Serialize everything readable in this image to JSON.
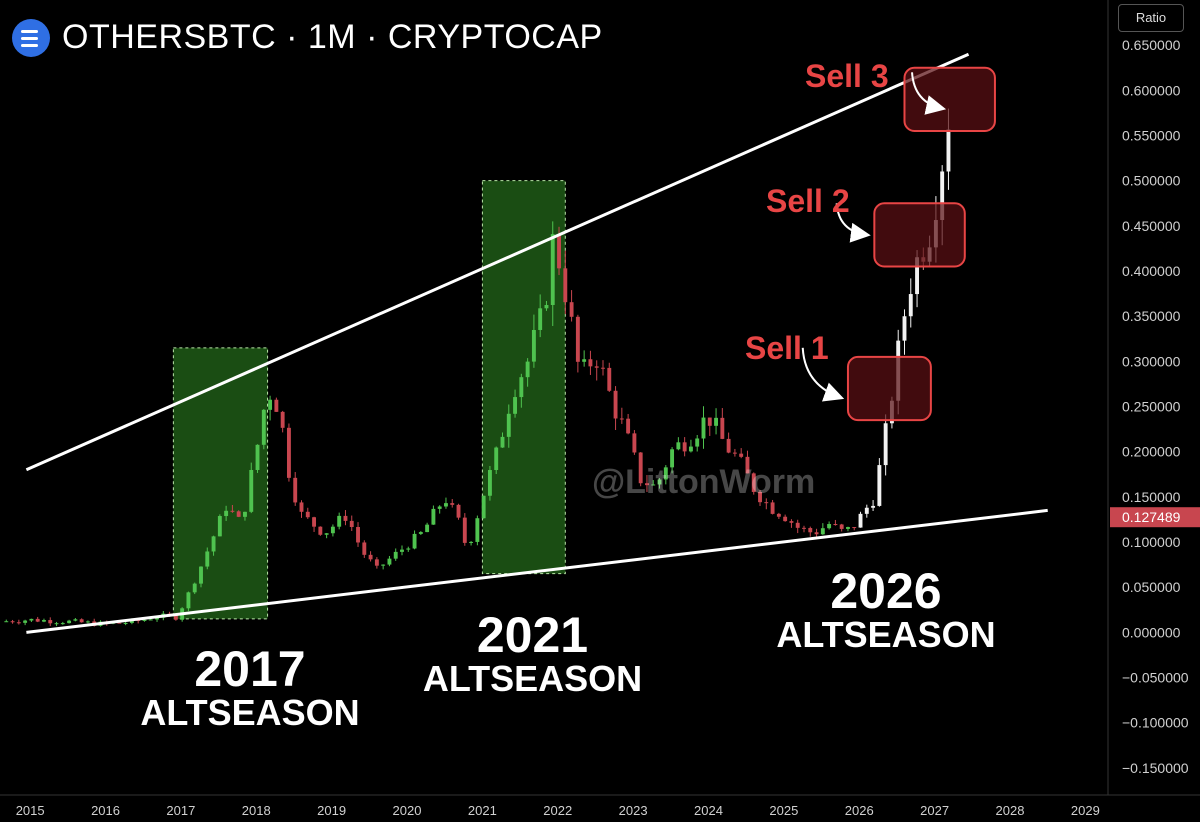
{
  "header": {
    "title": "OTHERSBTC · 1M · CRYPTOCAP",
    "scale_button": "Ratio"
  },
  "watermark": "@LittonWorm",
  "chart_data": {
    "type": "candlestick",
    "x_unit": "year",
    "xlim": [
      2014.6,
      2029.3
    ],
    "ylim": [
      -0.18,
      0.7
    ],
    "grid": false,
    "x_ticks": [
      "2015",
      "2016",
      "2017",
      "2018",
      "2019",
      "2020",
      "2021",
      "2022",
      "2023",
      "2024",
      "2025",
      "2026",
      "2027",
      "2028",
      "2029"
    ],
    "y_ticks": [
      "0.650000",
      "0.600000",
      "0.550000",
      "0.500000",
      "0.450000",
      "0.400000",
      "0.350000",
      "0.300000",
      "0.250000",
      "0.200000",
      "0.150000",
      "0.100000",
      "0.050000",
      "0.000000",
      "−0.050000",
      "−0.100000",
      "−0.150000"
    ],
    "y_tick_values": [
      0.65,
      0.6,
      0.55,
      0.5,
      0.45,
      0.4,
      0.35,
      0.3,
      0.25,
      0.2,
      0.15,
      0.1,
      0.05,
      0.0,
      -0.05,
      -0.1,
      -0.15
    ],
    "last_price": "0.127489",
    "last_price_value": 0.127489,
    "close_path": [
      [
        2014.6,
        0.012
      ],
      [
        2015.0,
        0.014
      ],
      [
        2015.5,
        0.012
      ],
      [
        2016.0,
        0.009
      ],
      [
        2016.4,
        0.012
      ],
      [
        2016.7,
        0.018
      ],
      [
        2016.95,
        0.017
      ],
      [
        2017.2,
        0.06
      ],
      [
        2017.4,
        0.1
      ],
      [
        2017.6,
        0.14
      ],
      [
        2017.8,
        0.12
      ],
      [
        2018.0,
        0.2
      ],
      [
        2018.15,
        0.27
      ],
      [
        2018.3,
        0.25
      ],
      [
        2018.45,
        0.17
      ],
      [
        2018.6,
        0.13
      ],
      [
        2018.9,
        0.11
      ],
      [
        2019.2,
        0.13
      ],
      [
        2019.4,
        0.09
      ],
      [
        2019.6,
        0.07
      ],
      [
        2019.9,
        0.09
      ],
      [
        2020.2,
        0.11
      ],
      [
        2020.5,
        0.15
      ],
      [
        2020.7,
        0.12
      ],
      [
        2020.8,
        0.09
      ],
      [
        2021.0,
        0.15
      ],
      [
        2021.2,
        0.2
      ],
      [
        2021.4,
        0.27
      ],
      [
        2021.6,
        0.3
      ],
      [
        2021.8,
        0.35
      ],
      [
        2021.95,
        0.44
      ],
      [
        2022.1,
        0.38
      ],
      [
        2022.3,
        0.28
      ],
      [
        2022.5,
        0.31
      ],
      [
        2022.7,
        0.26
      ],
      [
        2022.9,
        0.22
      ],
      [
        2023.1,
        0.17
      ],
      [
        2023.3,
        0.16
      ],
      [
        2023.5,
        0.2
      ],
      [
        2023.8,
        0.22
      ],
      [
        2024.0,
        0.24
      ],
      [
        2024.2,
        0.21
      ],
      [
        2024.4,
        0.19
      ],
      [
        2024.6,
        0.16
      ],
      [
        2024.8,
        0.14
      ],
      [
        2025.0,
        0.13
      ],
      [
        2025.2,
        0.115
      ],
      [
        2025.4,
        0.11
      ],
      [
        2025.6,
        0.12
      ],
      [
        2025.8,
        0.11
      ],
      [
        2025.95,
        0.12
      ],
      [
        2026.2,
        0.15
      ],
      [
        2026.35,
        0.22
      ],
      [
        2026.5,
        0.3
      ],
      [
        2026.65,
        0.38
      ],
      [
        2026.8,
        0.42
      ],
      [
        2026.95,
        0.45
      ],
      [
        2027.05,
        0.5
      ],
      [
        2027.15,
        0.55
      ],
      [
        2027.25,
        0.62
      ]
    ],
    "trendlines": [
      {
        "name": "upper",
        "from": [
          2014.95,
          0.18
        ],
        "to": [
          2027.45,
          0.64
        ]
      },
      {
        "name": "lower",
        "from": [
          2014.95,
          0.0
        ],
        "to": [
          2028.5,
          0.135
        ]
      }
    ],
    "highlight_zones": [
      {
        "x": [
          2016.9,
          2018.15
        ],
        "y": [
          0.015,
          0.315
        ],
        "color": "#1f5a16"
      },
      {
        "x": [
          2021.0,
          2022.1
        ],
        "y": [
          0.065,
          0.5
        ],
        "color": "#1f5a16"
      }
    ],
    "sell_zones": [
      {
        "label": "Sell 1",
        "x": [
          2025.85,
          2026.95
        ],
        "y": [
          0.235,
          0.305
        ],
        "arrow_from": [
          2025.25,
          0.315
        ],
        "arrow_to": [
          2025.75,
          0.26
        ]
      },
      {
        "label": "Sell 2",
        "x": [
          2026.2,
          2027.4
        ],
        "y": [
          0.405,
          0.475
        ],
        "arrow_from": [
          2025.7,
          0.475
        ],
        "arrow_to": [
          2026.1,
          0.44
        ]
      },
      {
        "label": "Sell 3",
        "x": [
          2026.6,
          2027.8
        ],
        "y": [
          0.555,
          0.625
        ],
        "arrow_from": [
          2026.7,
          0.62
        ],
        "arrow_to": [
          2027.1,
          0.58
        ]
      }
    ],
    "annotations": [
      {
        "year": "2017",
        "label": "ALTSEASON"
      },
      {
        "year": "2021",
        "label": "ALTSEASON"
      },
      {
        "year": "2026",
        "label": "ALTSEASON"
      }
    ]
  }
}
